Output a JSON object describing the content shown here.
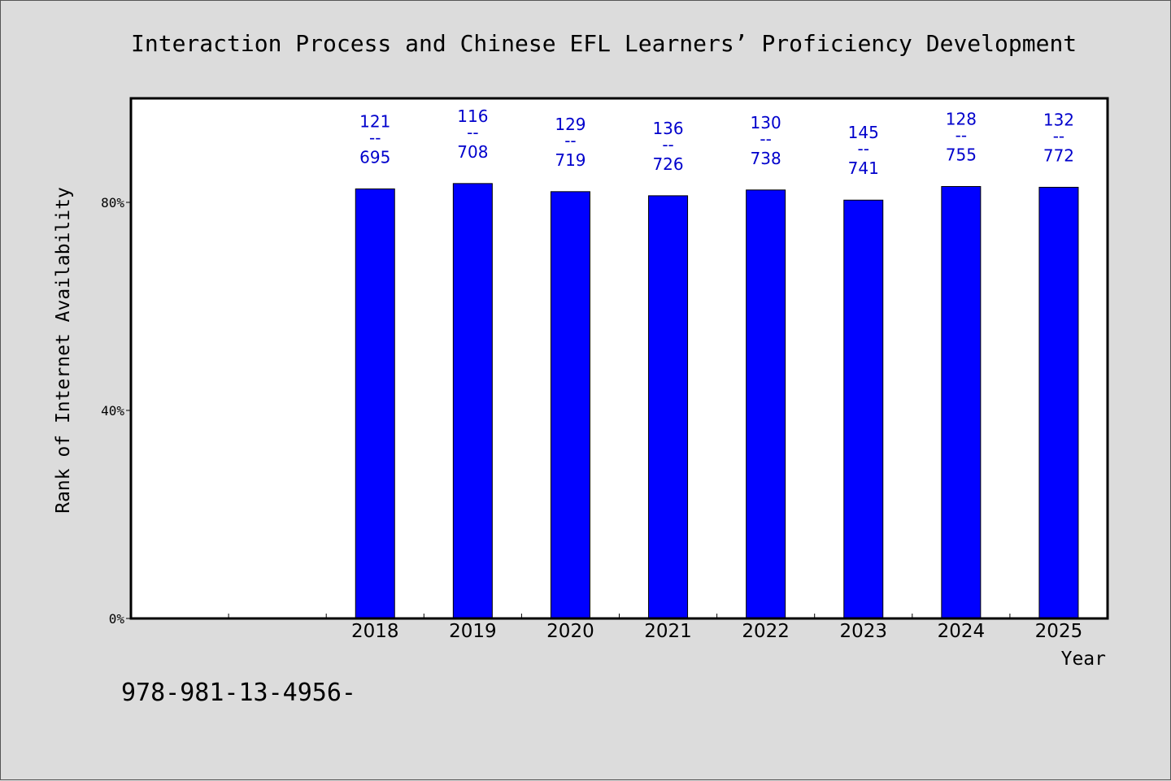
{
  "chart_data": {
    "type": "bar",
    "title": "Interaction Process and Chinese EFL Learners’ Proficiency Development",
    "xlabel": "Year",
    "ylabel": "Rank of Internet Availability",
    "categories": [
      "",
      "",
      "2018",
      "2019",
      "2020",
      "2021",
      "2022",
      "2023",
      "2024",
      "2025"
    ],
    "values": [
      null,
      null,
      0.8259,
      0.8362,
      0.8206,
      0.8127,
      0.8238,
      0.8043,
      0.8305,
      0.829
    ],
    "bar_labels": [
      null,
      null,
      {
        "top": "121",
        "sep": "--",
        "bottom": "695"
      },
      {
        "top": "116",
        "sep": "--",
        "bottom": "708"
      },
      {
        "top": "129",
        "sep": "--",
        "bottom": "719"
      },
      {
        "top": "136",
        "sep": "--",
        "bottom": "726"
      },
      {
        "top": "130",
        "sep": "--",
        "bottom": "738"
      },
      {
        "top": "145",
        "sep": "--",
        "bottom": "741"
      },
      {
        "top": "128",
        "sep": "--",
        "bottom": "755"
      },
      {
        "top": "132",
        "sep": "--",
        "bottom": "772"
      }
    ],
    "ylim": [
      0,
      1.0
    ],
    "y_ticks": [
      {
        "value": 0,
        "label": "0%"
      },
      {
        "value": 0.4,
        "label": "40%"
      },
      {
        "value": 0.8,
        "label": "80%"
      }
    ],
    "grid": false,
    "legend": "none",
    "colors": {
      "bar": "#0000ff",
      "bar_label": "#0000cc",
      "background": "#dcdcdc",
      "plot_area": "#ffffff"
    }
  },
  "footnote": "978-981-13-4956-"
}
